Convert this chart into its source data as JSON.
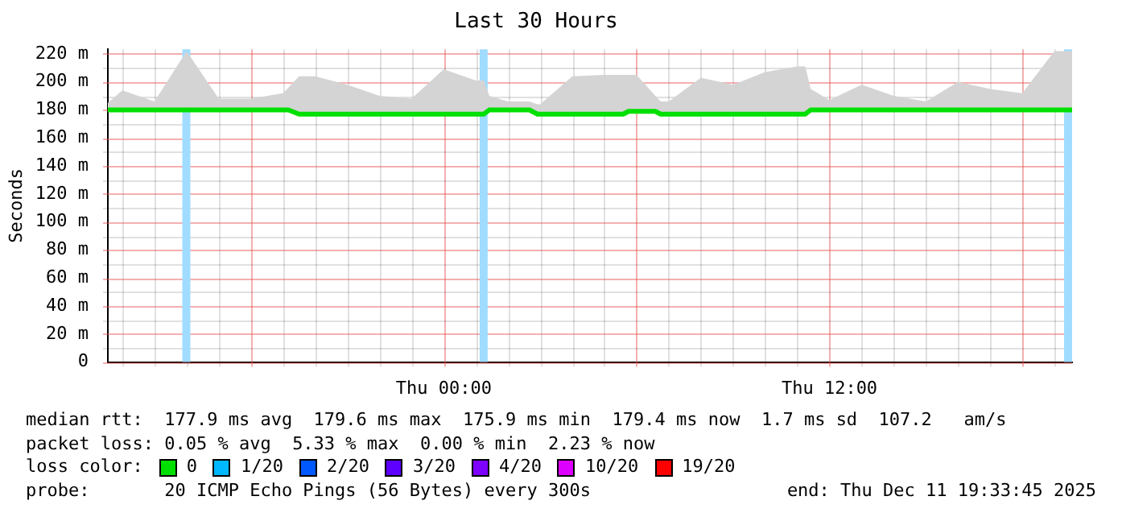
{
  "chart_data": {
    "type": "line",
    "title": "Last 30 Hours",
    "ylabel": "Seconds",
    "xlim": [
      "2025-12-10T13:33",
      "2025-12-11T19:33"
    ],
    "xticks": [
      {
        "value": "2025-12-10T14:00",
        "label": null
      },
      {
        "value": "2025-12-10T15:00",
        "label": null
      },
      {
        "value": "2025-12-10T16:00",
        "label": null
      },
      {
        "value": "2025-12-10T17:00",
        "label": null
      },
      {
        "value": "2025-12-10T18:00",
        "label": null
      },
      {
        "value": "2025-12-10T19:00",
        "label": null
      },
      {
        "value": "2025-12-10T20:00",
        "label": null
      },
      {
        "value": "2025-12-10T21:00",
        "label": null
      },
      {
        "value": "2025-12-10T22:00",
        "label": null
      },
      {
        "value": "2025-12-10T23:00",
        "label": null
      },
      {
        "value": "2025-12-11T00:00",
        "label": "Thu 00:00"
      },
      {
        "value": "2025-12-11T01:00",
        "label": null
      },
      {
        "value": "2025-12-11T02:00",
        "label": null
      },
      {
        "value": "2025-12-11T03:00",
        "label": null
      },
      {
        "value": "2025-12-11T04:00",
        "label": null
      },
      {
        "value": "2025-12-11T05:00",
        "label": null
      },
      {
        "value": "2025-12-11T06:00",
        "label": null
      },
      {
        "value": "2025-12-11T07:00",
        "label": null
      },
      {
        "value": "2025-12-11T08:00",
        "label": null
      },
      {
        "value": "2025-12-11T09:00",
        "label": null
      },
      {
        "value": "2025-12-11T10:00",
        "label": null
      },
      {
        "value": "2025-12-11T11:00",
        "label": null
      },
      {
        "value": "2025-12-11T12:00",
        "label": "Thu 12:00"
      },
      {
        "value": "2025-12-11T13:00",
        "label": null
      },
      {
        "value": "2025-12-11T14:00",
        "label": null
      },
      {
        "value": "2025-12-11T15:00",
        "label": null
      },
      {
        "value": "2025-12-11T16:00",
        "label": null
      },
      {
        "value": "2025-12-11T17:00",
        "label": null
      },
      {
        "value": "2025-12-11T18:00",
        "label": null
      },
      {
        "value": "2025-12-11T19:00",
        "label": null
      }
    ],
    "ylim": [
      0,
      223.3
    ],
    "yticks": [
      0,
      {
        "value": 10,
        "label": null
      },
      {
        "value": 20,
        "label": "20 m"
      },
      {
        "value": 30,
        "label": null
      },
      {
        "value": 40,
        "label": "40 m"
      },
      {
        "value": 50,
        "label": null
      },
      {
        "value": 60,
        "label": "60 m"
      },
      {
        "value": 70,
        "label": null
      },
      {
        "value": 80,
        "label": "80 m"
      },
      {
        "value": 90,
        "label": null
      },
      {
        "value": 100,
        "label": "100 m"
      },
      {
        "value": 110,
        "label": null
      },
      {
        "value": 120,
        "label": "120 m"
      },
      {
        "value": 130,
        "label": null
      },
      {
        "value": 140,
        "label": "140 m"
      },
      {
        "value": 150,
        "label": null
      },
      {
        "value": 160,
        "label": "160 m"
      },
      {
        "value": 170,
        "label": null
      },
      {
        "value": 180,
        "label": "180 m"
      },
      {
        "value": 190,
        "label": null
      },
      {
        "value": 200,
        "label": "200 m"
      },
      {
        "value": 210,
        "label": null
      },
      {
        "value": 220,
        "label": "220 m"
      }
    ],
    "grid": true,
    "legend": "bottom",
    "legend_title": "loss color:",
    "marker": "none",
    "line_style": "solid",
    "series": [
      {
        "name": "0",
        "color": "#00e000",
        "x": [
          "2025-12-10T13:33",
          "2025-12-10T14:00",
          "2025-12-10T15:00",
          "2025-12-10T16:00",
          "2025-12-10T17:00",
          "2025-12-10T18:00",
          "2025-12-10T19:00",
          "2025-12-10T19:10",
          "2025-12-10T19:30",
          "2025-12-10T20:00",
          "2025-12-10T21:00",
          "2025-12-10T22:00",
          "2025-12-10T23:00",
          "2025-12-11T00:00",
          "2025-12-11T01:00",
          "2025-12-11T01:15",
          "2025-12-11T01:25",
          "2025-12-11T02:00",
          "2025-12-11T02:40",
          "2025-12-11T02:55",
          "2025-12-11T03:00",
          "2025-12-11T04:00",
          "2025-12-11T05:00",
          "2025-12-11T05:35",
          "2025-12-11T05:45",
          "2025-12-11T06:00",
          "2025-12-11T06:35",
          "2025-12-11T06:45",
          "2025-12-11T07:00",
          "2025-12-11T08:00",
          "2025-12-11T09:00",
          "2025-12-11T10:00",
          "2025-12-11T11:00",
          "2025-12-11T11:15",
          "2025-12-11T11:25",
          "2025-12-11T12:00",
          "2025-12-11T13:00",
          "2025-12-11T14:00",
          "2025-12-11T15:00",
          "2025-12-11T16:00",
          "2025-12-11T17:00",
          "2025-12-11T18:00",
          "2025-12-11T19:00",
          "2025-12-11T19:33"
        ],
        "values": [
          180,
          180,
          180,
          180,
          180,
          180,
          180,
          180,
          177,
          177,
          177,
          177,
          177,
          177,
          177,
          177,
          180,
          180,
          180,
          177,
          177,
          177,
          177,
          177,
          179,
          179,
          179,
          177,
          177,
          177,
          177,
          177,
          177,
          177,
          180,
          180,
          180,
          180,
          180,
          180,
          180,
          180,
          180,
          180
        ],
        "lower": [
          179,
          179,
          179,
          179,
          179,
          179,
          179,
          179,
          176,
          176,
          176,
          176,
          176,
          176,
          176,
          176,
          179,
          179,
          179,
          176,
          176,
          176,
          176,
          176,
          178,
          178,
          178,
          176,
          176,
          176,
          176,
          176,
          176,
          176,
          179,
          179,
          179,
          179,
          179,
          179,
          179,
          179,
          179,
          179
        ],
        "upper": [
          185,
          194,
          186,
          222,
          188,
          188,
          192,
          196,
          204,
          204,
          198,
          190,
          188,
          209,
          201,
          201,
          190,
          186,
          186,
          184,
          184,
          204,
          205,
          205,
          205,
          205,
          190,
          186,
          186,
          203,
          198,
          207,
          211,
          211,
          195,
          187,
          198,
          190,
          186,
          200,
          195,
          192,
          222,
          222
        ]
      },
      {
        "name": "1/20",
        "color": "#00b8ff"
      },
      {
        "name": "2/20",
        "color": "#0059ff"
      },
      {
        "name": "3/20",
        "color": "#5e00ff"
      },
      {
        "name": "4/20",
        "color": "#7e00ff"
      },
      {
        "name": "10/20",
        "color": "#dd00ff"
      },
      {
        "name": "19/20",
        "color": "#ff0000"
      }
    ],
    "bands": [
      {
        "axis": "x",
        "from": "2025-12-10T15:52",
        "to": "2025-12-10T16:07",
        "color": "#a0dcff"
      },
      {
        "axis": "x",
        "from": "2025-12-11T01:07",
        "to": "2025-12-11T01:22",
        "color": "#a0dcff"
      },
      {
        "axis": "x",
        "from": "2025-12-11T19:18",
        "to": "2025-12-11T19:33",
        "color": "#a0dcff"
      }
    ],
    "annotations": [
      "median rtt:  177.9 ms avg  179.6 ms max  175.9 ms min  179.4 ms now  1.7 ms sd  107.2   am/s",
      "packet loss: 0.05 % avg  5.33 % max  0.00 % min  2.23 % now",
      "probe:       20 ICMP Echo Pings (56 Bytes) every 300s",
      "end: Thu Dec 11 19:33:45 2025"
    ]
  }
}
